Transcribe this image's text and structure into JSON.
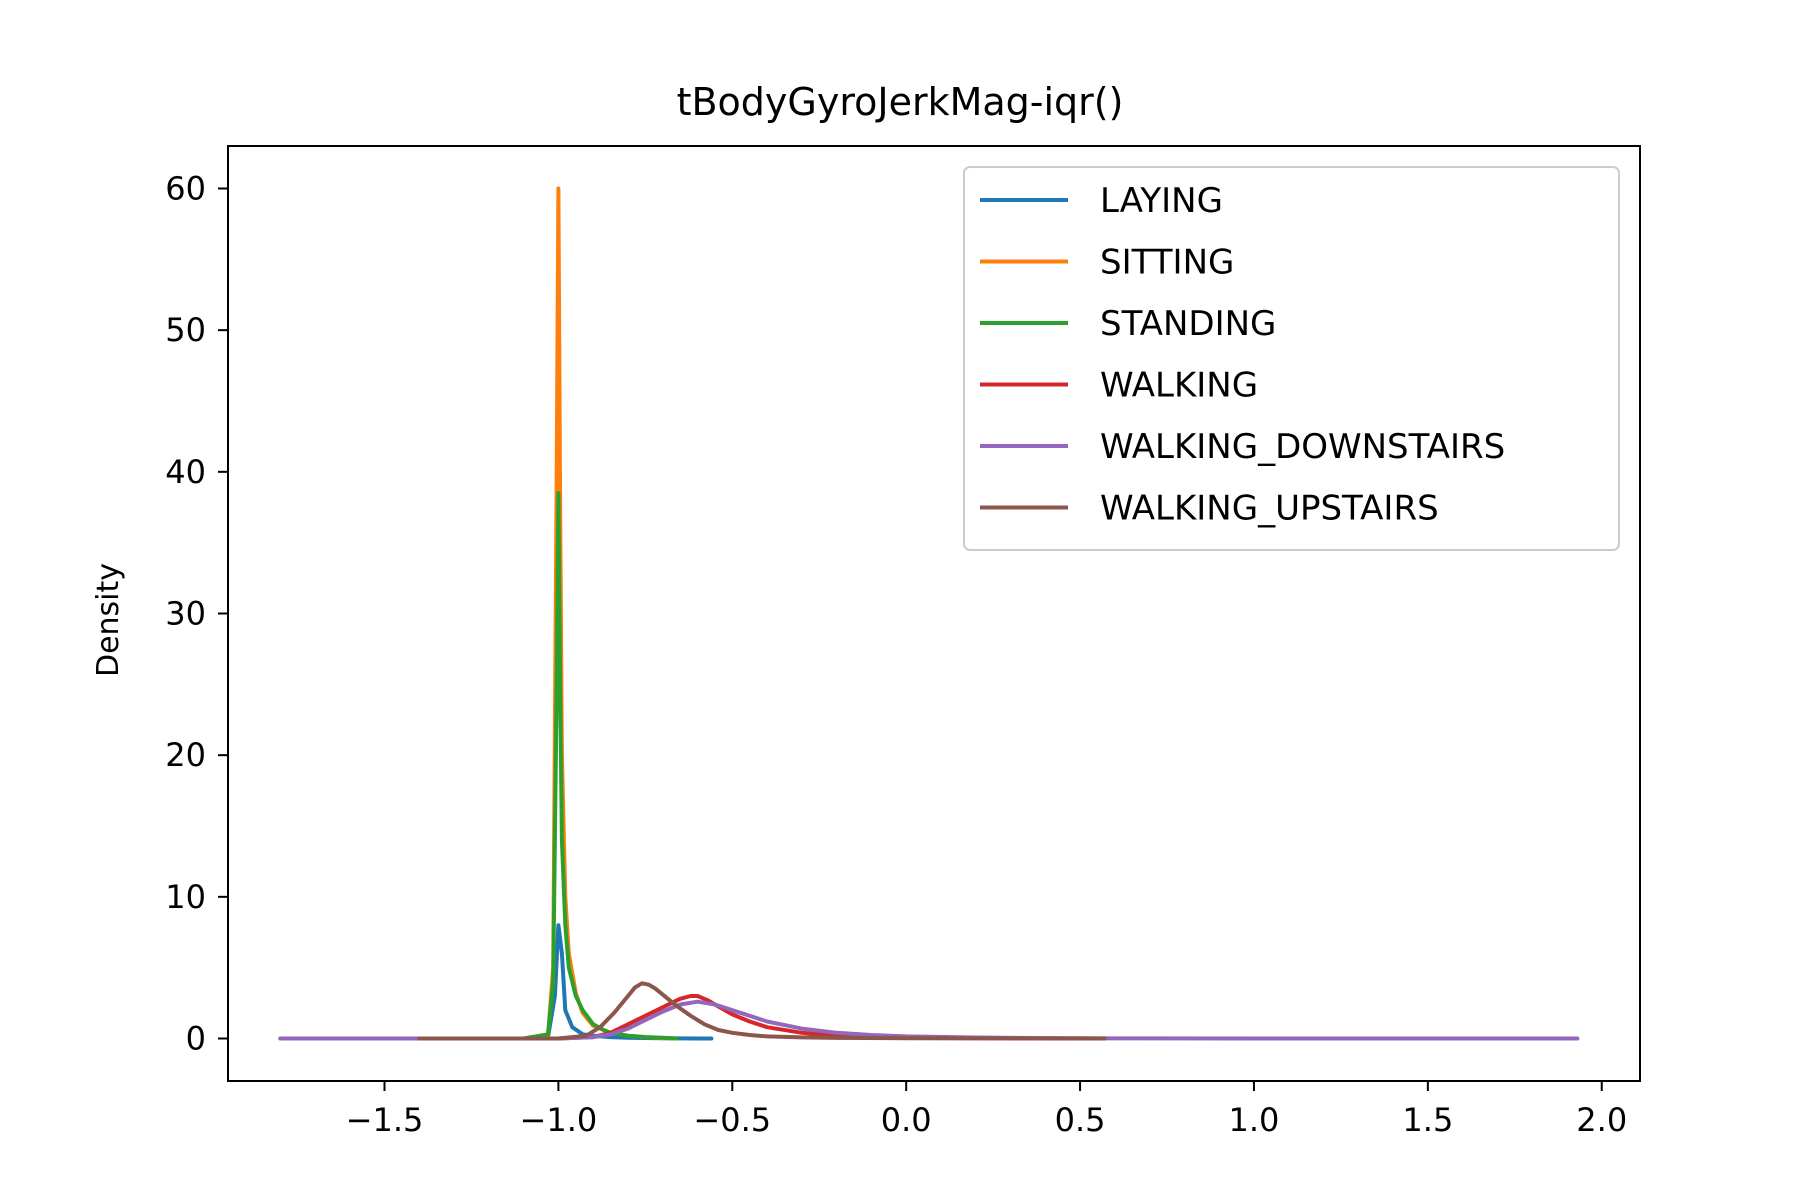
{
  "chart_data": {
    "type": "line",
    "title": "tBodyGyroJerkMag-iqr()",
    "xlabel": "",
    "ylabel": "Density",
    "xlim": [
      -1.95,
      2.11
    ],
    "ylim": [
      -3,
      63
    ],
    "x_ticks": [
      -1.5,
      -1.0,
      -0.5,
      0.0,
      0.5,
      1.0,
      1.5,
      2.0
    ],
    "x_tick_labels": [
      "−1.5",
      "−1.0",
      "−0.5",
      "0.0",
      "0.5",
      "1.0",
      "1.5",
      "2.0"
    ],
    "y_ticks": [
      0,
      10,
      20,
      30,
      40,
      50,
      60
    ],
    "y_tick_labels": [
      "0",
      "10",
      "20",
      "30",
      "40",
      "50",
      "60"
    ],
    "grid": false,
    "legend_position": "top-right",
    "series": [
      {
        "name": "LAYING",
        "color": "#1f77b4",
        "x": [
          -1.42,
          -1.1,
          -1.03,
          -1.01,
          -1.0,
          -0.99,
          -0.98,
          -0.96,
          -0.93,
          -0.9,
          -0.85,
          -0.8,
          -0.7,
          -0.6,
          -0.56
        ],
        "y": [
          0,
          0,
          0.1,
          3,
          8,
          6,
          2,
          0.8,
          0.3,
          0.2,
          0.1,
          0.05,
          0.02,
          0,
          0
        ]
      },
      {
        "name": "SITTING",
        "color": "#ff7f0e",
        "x": [
          -1.4,
          -1.1,
          -1.03,
          -1.015,
          -1.005,
          -1.0,
          -0.995,
          -0.99,
          -0.98,
          -0.97,
          -0.95,
          -0.93,
          -0.9,
          -0.85,
          -0.8,
          -0.75,
          -0.7,
          -0.66
        ],
        "y": [
          0,
          0,
          0.2,
          5,
          40,
          60,
          38,
          20,
          10,
          6,
          3.2,
          1.8,
          0.9,
          0.4,
          0.2,
          0.1,
          0.03,
          0
        ]
      },
      {
        "name": "STANDING",
        "color": "#2ca02c",
        "x": [
          -1.4,
          -1.1,
          -1.03,
          -1.015,
          -1.005,
          -1.0,
          -0.995,
          -0.99,
          -0.98,
          -0.97,
          -0.95,
          -0.93,
          -0.9,
          -0.87,
          -0.85,
          -0.8,
          -0.75,
          -0.7,
          -0.66
        ],
        "y": [
          0,
          0,
          0.3,
          4,
          25,
          38.5,
          25,
          14,
          8,
          5,
          3,
          2,
          1,
          0.6,
          0.4,
          0.2,
          0.1,
          0.05,
          0
        ]
      },
      {
        "name": "WALKING",
        "color": "#d62728",
        "x": [
          -1.4,
          -1.0,
          -0.9,
          -0.85,
          -0.8,
          -0.75,
          -0.7,
          -0.65,
          -0.62,
          -0.6,
          -0.57,
          -0.55,
          -0.5,
          -0.45,
          -0.4,
          -0.3,
          -0.2,
          -0.1,
          0.0,
          0.2,
          0.4,
          0.57
        ],
        "y": [
          0,
          0,
          0.1,
          0.4,
          1.0,
          1.6,
          2.2,
          2.8,
          3.0,
          3.0,
          2.7,
          2.4,
          1.7,
          1.2,
          0.8,
          0.4,
          0.2,
          0.1,
          0.05,
          0.02,
          0.01,
          0
        ]
      },
      {
        "name": "WALKING_DOWNSTAIRS",
        "color": "#9467bd",
        "x": [
          -1.8,
          -1.2,
          -1.0,
          -0.9,
          -0.85,
          -0.8,
          -0.75,
          -0.7,
          -0.65,
          -0.6,
          -0.55,
          -0.5,
          -0.45,
          -0.4,
          -0.3,
          -0.2,
          -0.1,
          0.0,
          0.2,
          0.4,
          0.6,
          1.0,
          1.5,
          1.93
        ],
        "y": [
          0,
          0,
          0,
          0.1,
          0.3,
          0.7,
          1.3,
          1.9,
          2.4,
          2.6,
          2.4,
          2.0,
          1.6,
          1.2,
          0.7,
          0.4,
          0.25,
          0.15,
          0.07,
          0.03,
          0.01,
          0,
          0,
          0
        ]
      },
      {
        "name": "WALKING_UPSTAIRS",
        "color": "#8c564b",
        "x": [
          -1.4,
          -1.0,
          -0.92,
          -0.88,
          -0.84,
          -0.8,
          -0.78,
          -0.76,
          -0.74,
          -0.72,
          -0.7,
          -0.66,
          -0.62,
          -0.58,
          -0.54,
          -0.5,
          -0.45,
          -0.4,
          -0.3,
          -0.2,
          0.0,
          0.3,
          0.57
        ],
        "y": [
          0,
          0,
          0.2,
          0.8,
          1.8,
          3.0,
          3.6,
          3.9,
          3.8,
          3.5,
          3.1,
          2.3,
          1.6,
          1.0,
          0.6,
          0.4,
          0.25,
          0.15,
          0.08,
          0.04,
          0.02,
          0.01,
          0
        ]
      }
    ]
  }
}
